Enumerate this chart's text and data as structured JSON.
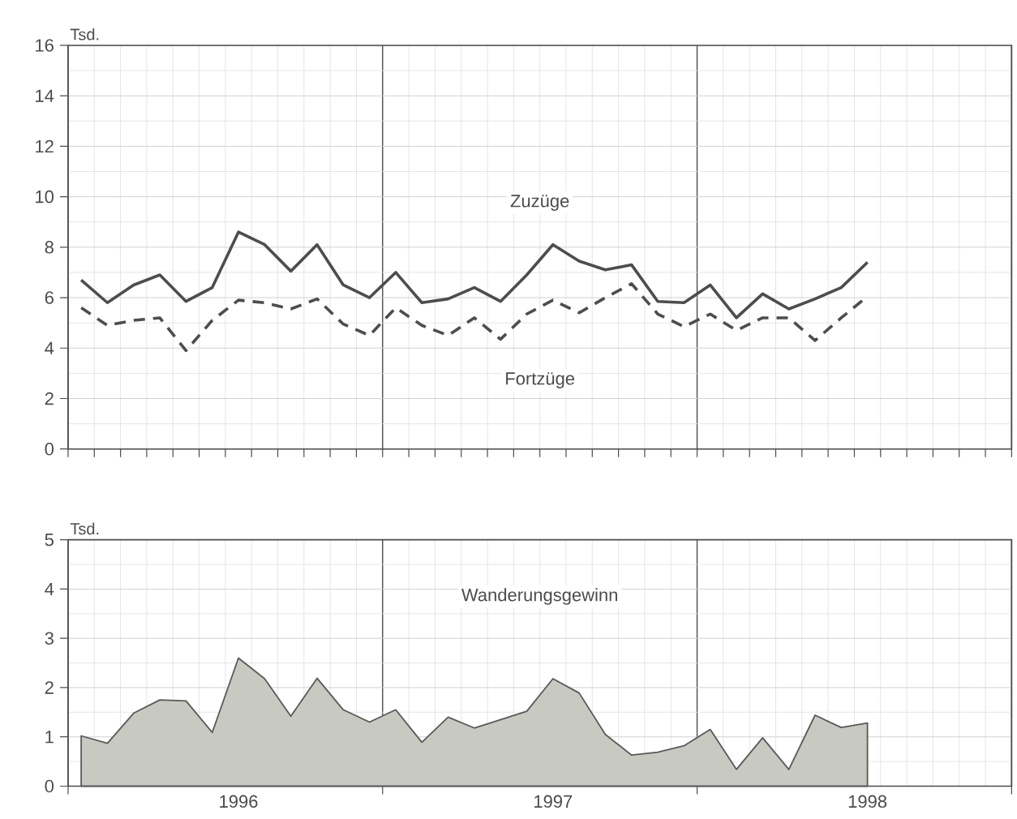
{
  "chart_data": [
    {
      "type": "line",
      "ylabel": "Tsd.",
      "categories": [
        null,
        null,
        null,
        null,
        null,
        null,
        null,
        null,
        null,
        null,
        null,
        null,
        null,
        null,
        null,
        null,
        null,
        null,
        null,
        null,
        null,
        null,
        null,
        null,
        null,
        null,
        null,
        null,
        null,
        null,
        null,
        null,
        null,
        null,
        null,
        null
      ],
      "series": [
        {
          "name": "Zuzüge",
          "color": "#4d4d4d",
          "line_style": "solid",
          "values": [
            6.7,
            5.8,
            6.5,
            6.9,
            5.85,
            6.4,
            8.6,
            8.1,
            7.05,
            8.1,
            6.5,
            6.0,
            7.0,
            5.8,
            5.95,
            6.4,
            5.85,
            6.9,
            8.1,
            7.45,
            7.1,
            7.3,
            5.85,
            5.8,
            6.5,
            5.2,
            6.15,
            5.55,
            5.95,
            6.4,
            7.4,
            null,
            null,
            null,
            null,
            null
          ]
        },
        {
          "name": "Fortzüge",
          "color": "#4d4d4d",
          "line_style": "dashed",
          "values": [
            5.6,
            4.9,
            5.1,
            5.2,
            3.9,
            5.1,
            5.9,
            5.8,
            5.55,
            5.95,
            4.95,
            4.5,
            5.6,
            4.9,
            4.5,
            5.2,
            4.35,
            5.35,
            5.9,
            5.4,
            6.0,
            6.55,
            5.35,
            4.85,
            5.35,
            4.7,
            5.2,
            5.2,
            4.3,
            5.2,
            6.05,
            null,
            null,
            null,
            null,
            null
          ]
        }
      ],
      "ylim": [
        0,
        16
      ],
      "yticks": [
        0,
        2,
        4,
        6,
        8,
        10,
        12,
        14,
        16
      ],
      "grid": true,
      "tick_labels": "y"
    },
    {
      "type": "area",
      "ylabel": "Tsd.",
      "categories": [
        null,
        null,
        null,
        null,
        null,
        null,
        "1996",
        null,
        null,
        null,
        null,
        null,
        null,
        null,
        null,
        null,
        null,
        null,
        "1997",
        null,
        null,
        null,
        null,
        null,
        null,
        null,
        null,
        null,
        null,
        null,
        "1998",
        null,
        null,
        null,
        null,
        null
      ],
      "series": [
        {
          "name": "Wanderungsgewinn",
          "color": "#c8cac2",
          "values": [
            1.02,
            0.87,
            1.48,
            1.75,
            1.73,
            1.09,
            2.6,
            2.18,
            1.42,
            2.19,
            1.55,
            1.3,
            1.55,
            0.89,
            1.4,
            1.18,
            1.35,
            1.52,
            2.18,
            1.89,
            1.05,
            0.63,
            0.69,
            0.82,
            1.15,
            0.34,
            0.98,
            0.34,
            1.44,
            1.19,
            1.28,
            null,
            null,
            null,
            null,
            null
          ]
        }
      ],
      "ylim": [
        0,
        5
      ],
      "yticks": [
        0,
        1,
        2,
        3,
        4,
        5
      ],
      "grid": true
    }
  ]
}
